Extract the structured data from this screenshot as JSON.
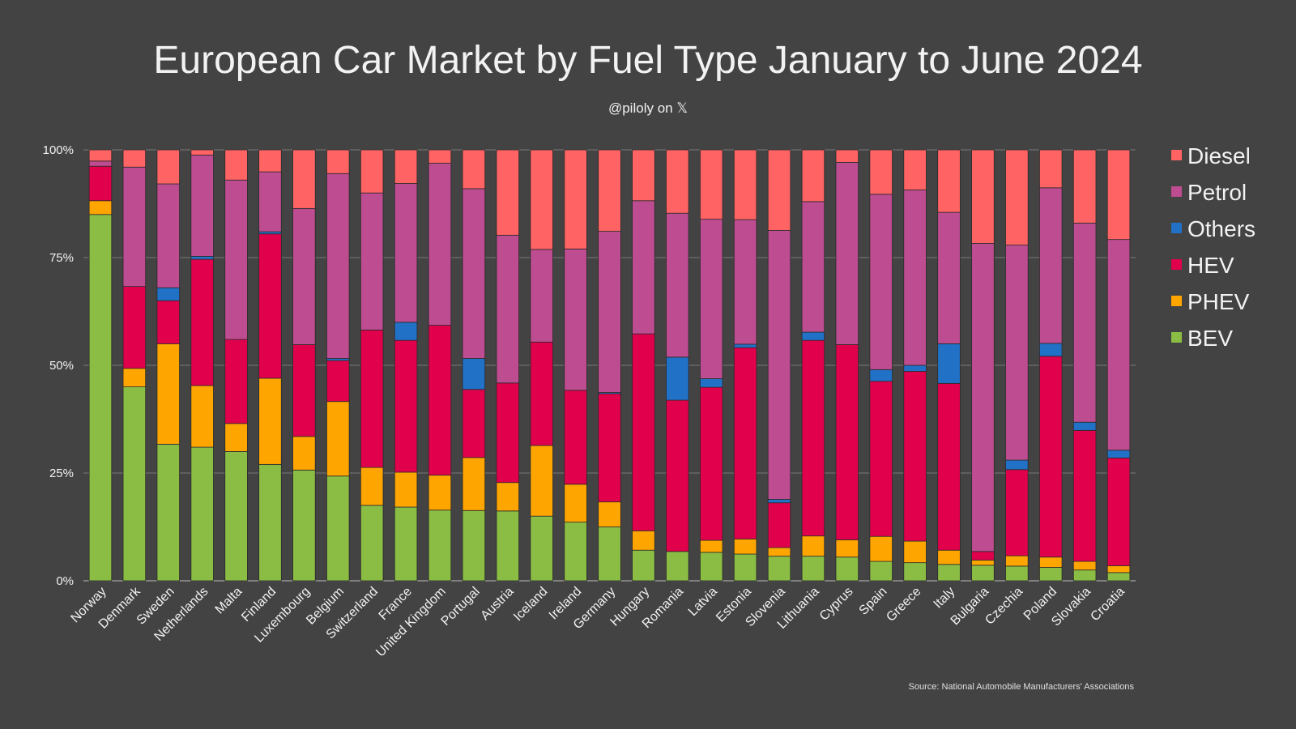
{
  "chart_data": {
    "type": "bar",
    "stacked": true,
    "title": "European Car Market by Fuel Type January to June 2024",
    "subtitle": "@piloly on 𝕏",
    "source": "Source: National Automobile Manufacturers' Associations",
    "ylim": [
      0,
      100
    ],
    "yticks": [
      "0%",
      "25%",
      "50%",
      "75%",
      "100%"
    ],
    "grid": true,
    "legend_position": "right",
    "categories": [
      "Norway",
      "Denmark",
      "Sweden",
      "Netherlands",
      "Malta",
      "Finland",
      "Luxembourg",
      "Belgium",
      "Switzerland",
      "France",
      "United Kingdom",
      "Portugal",
      "Austria",
      "Iceland",
      "Ireland",
      "Germany",
      "Hungary",
      "Romania",
      "Latvia",
      "Estonia",
      "Slovenia",
      "Lithuania",
      "Cyprus",
      "Spain",
      "Greece",
      "Italy",
      "Bulgaria",
      "Czechia",
      "Poland",
      "Slovakia",
      "Croatia"
    ],
    "series": [
      {
        "name": "BEV",
        "color": "#8bbd45",
        "values": [
          85.0,
          45.0,
          31.7,
          31.0,
          30.0,
          27.0,
          25.7,
          24.3,
          17.5,
          17.1,
          16.4,
          16.3,
          16.2,
          15.0,
          13.6,
          12.5,
          7.1,
          6.8,
          6.6,
          6.2,
          5.7,
          5.7,
          5.5,
          4.5,
          4.2,
          3.8,
          3.6,
          3.4,
          3.1,
          2.5,
          1.9
        ]
      },
      {
        "name": "PHEV",
        "color": "#ffa500",
        "values": [
          3.2,
          4.3,
          23.3,
          14.3,
          6.5,
          20.0,
          7.8,
          17.3,
          8.8,
          8.1,
          8.1,
          12.3,
          6.6,
          16.4,
          8.8,
          5.8,
          4.5,
          0,
          2.8,
          3.5,
          2.0,
          4.7,
          4.0,
          5.8,
          5.0,
          3.3,
          1.2,
          2.4,
          2.4,
          2.0,
          1.6
        ]
      },
      {
        "name": "HEV",
        "color": "#e1004c",
        "values": [
          8.0,
          19.0,
          10.0,
          29.3,
          19.5,
          33.5,
          21.3,
          9.5,
          31.9,
          30.6,
          34.8,
          15.8,
          23.1,
          24.0,
          21.8,
          25.1,
          45.7,
          35.1,
          35.5,
          44.4,
          10.4,
          45.4,
          45.3,
          36.0,
          39.4,
          38.7,
          2.0,
          20.0,
          46.6,
          30.4,
          25.0
        ]
      },
      {
        "name": "Others",
        "color": "#2171c7",
        "values": [
          0,
          0,
          3.0,
          0.7,
          0,
          0.5,
          0,
          0.5,
          0,
          4.2,
          0,
          7.2,
          0,
          0,
          0,
          0.3,
          0,
          10.0,
          2.0,
          0.8,
          0.8,
          1.9,
          0,
          2.7,
          1.4,
          9.2,
          0,
          2.2,
          3.0,
          1.9,
          1.8
        ]
      },
      {
        "name": "Petrol",
        "color": "#be4c90",
        "values": [
          1.2,
          27.7,
          24.1,
          23.5,
          37.0,
          13.9,
          31.6,
          42.9,
          31.8,
          32.2,
          37.6,
          39.4,
          34.3,
          21.5,
          32.8,
          37.4,
          30.9,
          33.4,
          37.0,
          28.9,
          62.4,
          30.3,
          42.3,
          40.7,
          40.7,
          30.5,
          71.5,
          49.9,
          36.1,
          46.2,
          48.9
        ]
      },
      {
        "name": "Diesel",
        "color": "#ff6363",
        "values": [
          2.6,
          4.0,
          7.9,
          1.2,
          7.0,
          5.1,
          13.6,
          5.5,
          10.0,
          7.8,
          3.1,
          9.0,
          19.8,
          23.1,
          23.0,
          18.9,
          11.8,
          14.7,
          16.1,
          16.2,
          18.7,
          12.0,
          2.9,
          10.3,
          9.3,
          14.5,
          21.7,
          22.1,
          8.8,
          17.0,
          20.8
        ]
      }
    ],
    "legend_order": [
      "Diesel",
      "Petrol",
      "Others",
      "HEV",
      "PHEV",
      "BEV"
    ]
  }
}
